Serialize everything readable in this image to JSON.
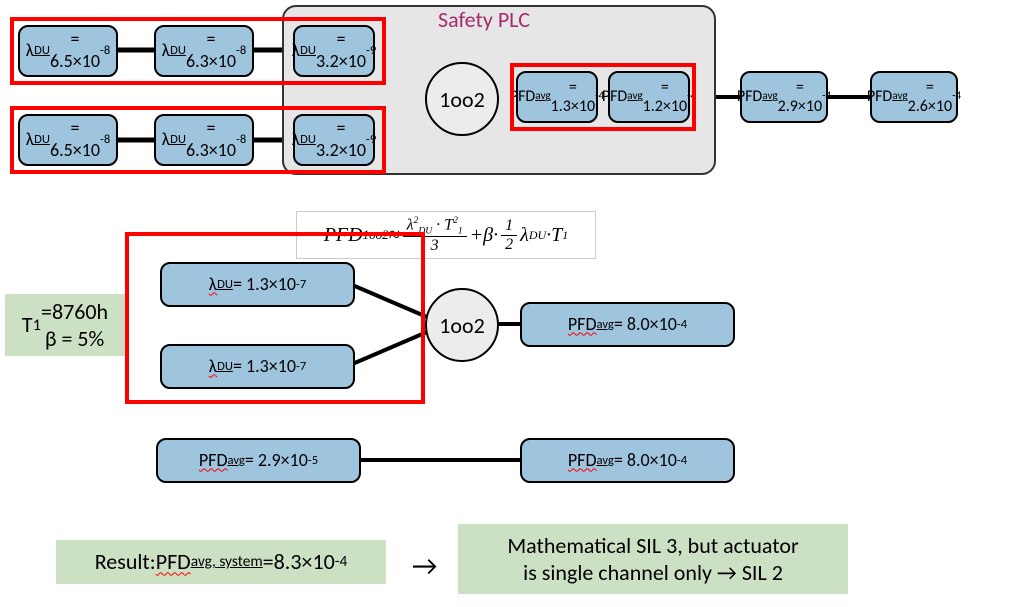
{
  "plc": {
    "title": "Safety PLC"
  },
  "top": {
    "ch1": {
      "b1": "λ<sub class='sub'>DU</sub> =<br>6.5×10<sup class='sup'>-8</sup>",
      "b2": "λ<sub class='sub'>DU</sub> =<br>6.3×10<sup class='sup'>-8</sup>",
      "b3": "λ<sub class='sub'>DU</sub> =<br>3.2×10<sup class='sup'>-9</sup>"
    },
    "ch2": {
      "b1": "λ<sub class='sub'>DU</sub> =<br>6.5×10<sup class='sup'>-8</sup>",
      "b2": "λ<sub class='sub'>DU</sub> =<br>6.3×10<sup class='sup'>-8</sup>",
      "b3": "λ<sub class='sub'>DU</sub> =<br>3.2×10<sup class='sup'>-9</sup>"
    },
    "voter": "1oo2",
    "out": {
      "b1": "PFD<sub class='sub'>avg</sub>=<br>1.3×10<sup class='sup'>-4</sup>",
      "b2": "PFD<sub class='sub'>avg</sub>=<br>1.2×10<sup class='sup'>-4</sup>",
      "b3": "PFD<sub class='sub'>avg</sub>=<br>2.9×10<sup class='sup'>-4</sup>",
      "b4": "PFD<sub class='sub'>avg</sub>=<br>2.6×10<sup class='sup'>-4</sup>"
    }
  },
  "mid": {
    "params": "T<sub style='font-size:0.75em'>1</sub>=8760h<br>β = 5%",
    "ch1": "<span class='squiggle'>λ</span><sub class='sub'>DU</sub> = 1.3×10<sup class='sup'>-7</sup>",
    "ch2": "<span class='squiggle'>λ</span><sub class='sub'>DU</sub> = 1.3×10<sup class='sup'>-7</sup>",
    "voter": "1oo2",
    "out": "<span class='squiggle'>PFD</span><sub class='sub'>avg</sub>= 8.0×10<sup class='sup'>-4</sup>",
    "formula_html": "<span style='font-style:italic'>PFD</span><sub style='font-size:0.65em'>1oo2</sub> ≈ <span class='frac'><span class='num'><i>λ</i><sup style='font-size:0.6em'>2</sup><sub style='font-size:0.6em'>DU</sub> · <i>T</i><sup style='font-size:0.6em'>2</sup><sub style='font-size:0.6em'>1</sub></span><span class='den'>3</span></span> + <i>β</i> · <span class='frac'><span class='num'>1</span><span class='den'>2</span></span> <i>λ</i><sub style='font-size:0.6em'>DU</sub> · <i>T</i><sub style='font-size:0.6em'>1</sub>"
  },
  "series": {
    "left": "<span class='squiggle'>PFD</span><sub class='sub'>avg</sub>= 2.9×10<sup class='sup'>-5</sup>",
    "right": "<span class='squiggle'>PFD</span><sub class='sub'>avg</sub>= 8.0×10<sup class='sup'>-4</sup>"
  },
  "result": {
    "left": "Result: <span class='squiggle'>PFD</span><sub style='font-size:0.7em;text-decoration: underline'>avg, system</sub>=8.3×10<sup style='font-size:0.7em'>-4</sup>",
    "arrow": "→",
    "right": "Mathematical SIL 3, but actuator<br>is single channel only → SIL 2"
  },
  "colors": {
    "blue_fill": "#9fc4dd",
    "green_fill": "#cce0c4",
    "plc_fill": "#e6e6e6",
    "red": "#ff0000",
    "title": "#a52a6e"
  }
}
